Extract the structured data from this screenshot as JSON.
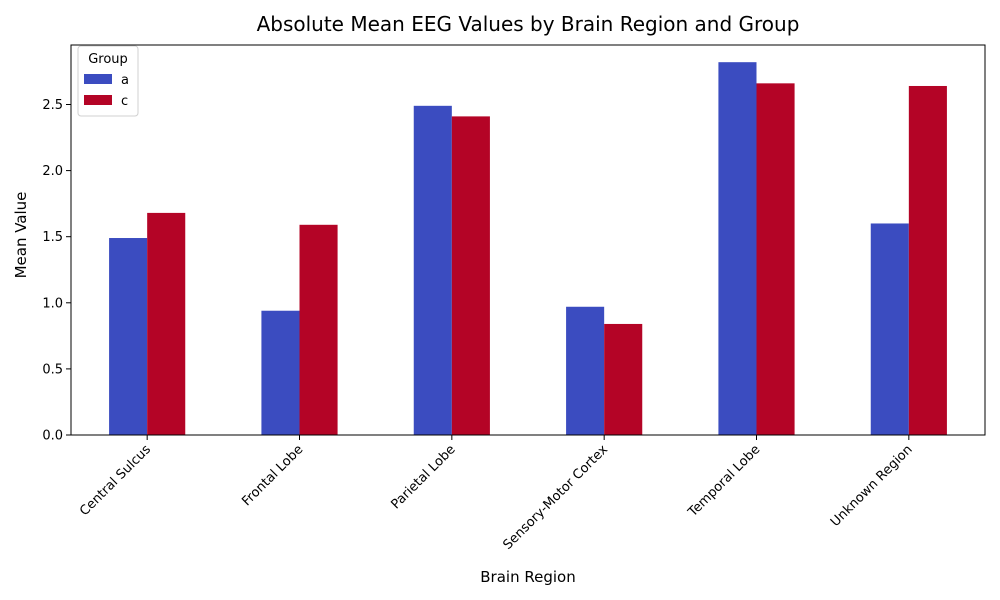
{
  "chart_data": {
    "type": "bar",
    "title": "Absolute Mean EEG Values by Brain Region and Group",
    "xlabel": "Brain Region",
    "ylabel": "Mean Value",
    "categories": [
      "Central Sulcus",
      "Frontal Lobe",
      "Parietal Lobe",
      "Sensory-Motor Cortex",
      "Temporal Lobe",
      "Unknown Region"
    ],
    "series": [
      {
        "name": "a",
        "color": "#3b4cc0",
        "values": [
          1.49,
          0.94,
          2.49,
          0.97,
          2.82,
          1.6
        ]
      },
      {
        "name": "c",
        "color": "#b40426",
        "values": [
          1.68,
          1.59,
          2.41,
          0.84,
          2.66,
          2.64
        ]
      }
    ],
    "ylim": [
      0,
      2.95
    ],
    "yticks": [
      "0.0",
      "0.5",
      "1.0",
      "1.5",
      "2.0",
      "2.5"
    ],
    "legend": {
      "title": "Group",
      "position": "top-left"
    },
    "grid": false
  }
}
